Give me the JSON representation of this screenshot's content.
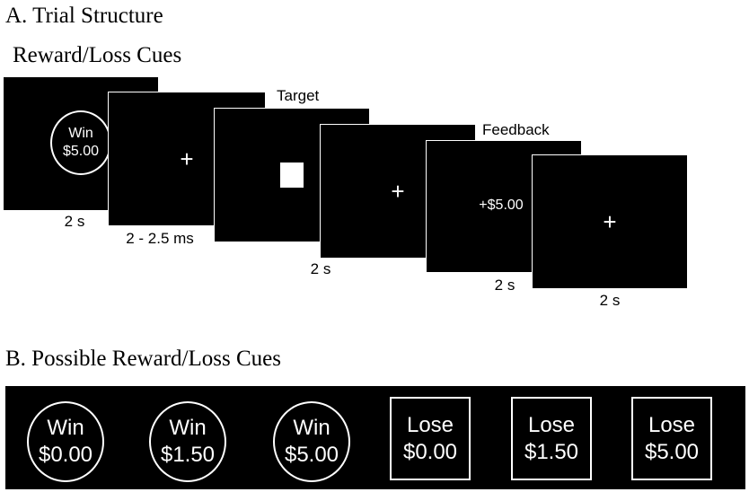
{
  "panel_a": {
    "title": "A. Trial Structure",
    "subtitle": "Reward/Loss Cues",
    "stage_labels": {
      "target": "Target",
      "feedback": "Feedback"
    },
    "screens": [
      {
        "cue_line1": "Win",
        "cue_line2": "$5.00",
        "duration": "2 s"
      },
      {
        "content": "+",
        "duration": "2 - 2.5 ms"
      },
      {
        "content": "",
        "duration": ""
      },
      {
        "content": "+",
        "duration": "2 s"
      },
      {
        "content": "+$5.00",
        "duration": "2 s"
      },
      {
        "content": "+",
        "duration": "2 s"
      }
    ]
  },
  "panel_b": {
    "title": "B. Possible Reward/Loss Cues",
    "cues": [
      {
        "shape": "oval",
        "line1": "Win",
        "line2": "$0.00"
      },
      {
        "shape": "oval",
        "line1": "Win",
        "line2": "$1.50"
      },
      {
        "shape": "oval",
        "line1": "Win",
        "line2": "$5.00"
      },
      {
        "shape": "square",
        "line1": "Lose",
        "line2": "$0.00"
      },
      {
        "shape": "square",
        "line1": "Lose",
        "line2": "$1.50"
      },
      {
        "shape": "square",
        "line1": "Lose",
        "line2": "$5.00"
      }
    ]
  }
}
